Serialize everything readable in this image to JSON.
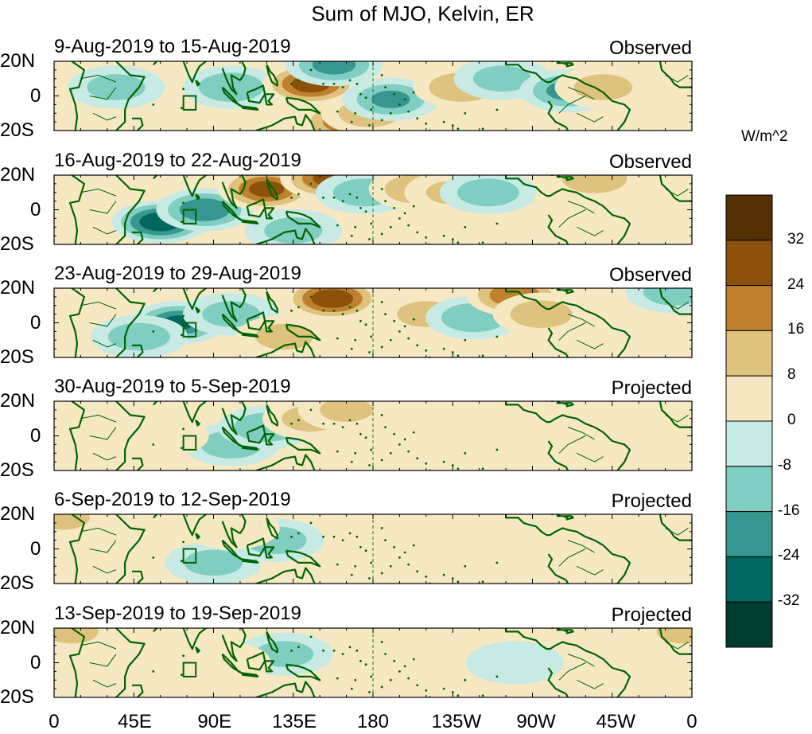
{
  "chart_data": {
    "type": "heatmap",
    "title": "Sum of MJO, Kelvin, ER",
    "colorbar": {
      "unit": "W/m^2",
      "levels": [
        40,
        32,
        24,
        16,
        8,
        0,
        -8,
        -16,
        -24,
        -32,
        -40
      ],
      "tick_labels": [
        "32",
        "24",
        "16",
        "8",
        "0",
        "-8",
        "-16",
        "-24",
        "-32"
      ],
      "colors": [
        "#543005",
        "#8c510a",
        "#bf812d",
        "#dfc27d",
        "#f6e8c3",
        "#c7eae5",
        "#80cdc1",
        "#35978f",
        "#01665e",
        "#003c30"
      ]
    },
    "x_axis": {
      "tick_labels": [
        "0",
        "45E",
        "90E",
        "135E",
        "180",
        "135W",
        "90W",
        "45W",
        "0"
      ],
      "range_degrees_east": [
        0,
        360
      ],
      "dateline_degrees_east": 180
    },
    "y_axis": {
      "tick_labels": [
        "20N",
        "0",
        "20S"
      ],
      "range_degrees": [
        -20,
        20
      ]
    },
    "panels": [
      {
        "title": "9-Aug-2019 to 15-Aug-2019",
        "status": "Observed",
        "blobs": [
          {
            "lon": 100,
            "lat": 5,
            "v": -14
          },
          {
            "lon": 145,
            "lat": 7,
            "v": 28
          },
          {
            "lon": 158,
            "lat": 18,
            "v": -18
          },
          {
            "lon": 165,
            "lat": -15,
            "v": 20
          },
          {
            "lon": 178,
            "lat": -10,
            "v": 12
          },
          {
            "lon": 190,
            "lat": -2,
            "v": -16
          },
          {
            "lon": 230,
            "lat": 5,
            "v": 14
          },
          {
            "lon": 253,
            "lat": 10,
            "v": -10
          },
          {
            "lon": 290,
            "lat": 3,
            "v": -18
          },
          {
            "lon": 310,
            "lat": 5,
            "v": 10
          },
          {
            "lon": 35,
            "lat": 5,
            "v": -10
          }
        ]
      },
      {
        "title": "16-Aug-2019 to 22-Aug-2019",
        "status": "Observed",
        "blobs": [
          {
            "lon": 60,
            "lat": -7,
            "v": -30
          },
          {
            "lon": 85,
            "lat": 0,
            "v": -22
          },
          {
            "lon": 120,
            "lat": 12,
            "v": 26
          },
          {
            "lon": 155,
            "lat": 18,
            "v": 24
          },
          {
            "lon": 175,
            "lat": 10,
            "v": -12
          },
          {
            "lon": 205,
            "lat": 12,
            "v": 14
          },
          {
            "lon": 225,
            "lat": 10,
            "v": 8
          },
          {
            "lon": 245,
            "lat": 10,
            "v": -12
          },
          {
            "lon": 305,
            "lat": 18,
            "v": 14
          },
          {
            "lon": 135,
            "lat": -12,
            "v": -10
          }
        ]
      },
      {
        "title": "23-Aug-2019 to 29-Aug-2019",
        "status": "Observed",
        "blobs": [
          {
            "lon": 70,
            "lat": 0,
            "v": -24
          },
          {
            "lon": 48,
            "lat": -8,
            "v": -12
          },
          {
            "lon": 100,
            "lat": 5,
            "v": -10
          },
          {
            "lon": 157,
            "lat": 14,
            "v": 30
          },
          {
            "lon": 130,
            "lat": -8,
            "v": 10
          },
          {
            "lon": 210,
            "lat": 5,
            "v": 10
          },
          {
            "lon": 237,
            "lat": 3,
            "v": -14
          },
          {
            "lon": 260,
            "lat": 16,
            "v": 22
          },
          {
            "lon": 275,
            "lat": 5,
            "v": 12
          },
          {
            "lon": 350,
            "lat": 18,
            "v": -12
          }
        ]
      },
      {
        "title": "30-Aug-2019 to 5-Sep-2019",
        "status": "Projected",
        "blobs": [
          {
            "lon": 100,
            "lat": -5,
            "v": -12
          },
          {
            "lon": 120,
            "lat": 5,
            "v": -14
          },
          {
            "lon": 145,
            "lat": 10,
            "v": 10
          },
          {
            "lon": 165,
            "lat": 15,
            "v": 8
          },
          {
            "lon": 230,
            "lat": 0,
            "v": 6
          },
          {
            "lon": 30,
            "lat": 5,
            "v": 5
          },
          {
            "lon": 60,
            "lat": 0,
            "v": 4
          },
          {
            "lon": 320,
            "lat": 5,
            "v": 6
          }
        ]
      },
      {
        "title": "6-Sep-2019 to 12-Sep-2019",
        "status": "Projected",
        "blobs": [
          {
            "lon": 125,
            "lat": 5,
            "v": -12
          },
          {
            "lon": 90,
            "lat": -8,
            "v": -10
          },
          {
            "lon": 100,
            "lat": 12,
            "v": 6
          },
          {
            "lon": 180,
            "lat": 10,
            "v": 5
          },
          {
            "lon": 215,
            "lat": -5,
            "v": 6
          },
          {
            "lon": 255,
            "lat": 5,
            "v": 5
          },
          {
            "lon": 5,
            "lat": 18,
            "v": 8
          }
        ]
      },
      {
        "title": "13-Sep-2019 to 19-Sep-2019",
        "status": "Projected",
        "blobs": [
          {
            "lon": 130,
            "lat": 5,
            "v": -10
          },
          {
            "lon": 95,
            "lat": 0,
            "v": 5
          },
          {
            "lon": 220,
            "lat": 5,
            "v": 4
          },
          {
            "lon": 260,
            "lat": 0,
            "v": -5
          },
          {
            "lon": 10,
            "lat": 18,
            "v": 8
          },
          {
            "lon": 355,
            "lat": 18,
            "v": 8
          }
        ]
      }
    ]
  }
}
